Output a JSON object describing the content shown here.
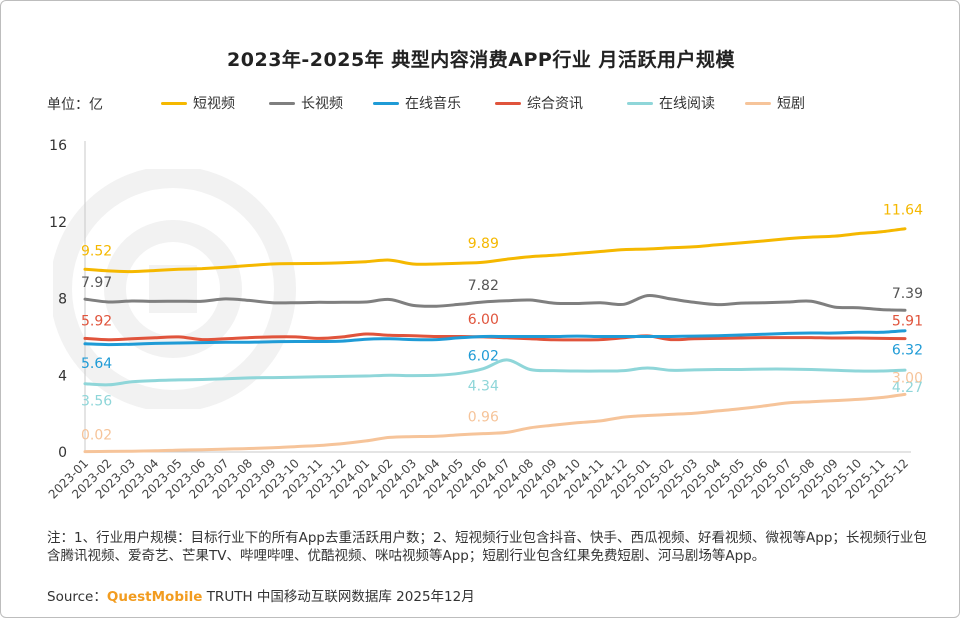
{
  "title": "2023年-2025年 典型内容消费APP行业 月活跃用户规模",
  "unit_label": "单位：亿",
  "note": "注：1、行业用户规模：目标行业下的所有App去重活跃用户数；2、短视频行业包含抖音、快手、西瓜视频、好看视频、微视等App；长视频行业包含腾讯视频、爱奇艺、芒果TV、哔哩哔哩、优酷视频、咪咕视频等App；短剧行业包含红果免费短剧、河马剧场等App。",
  "source": {
    "prefix": "Source：",
    "brand": "QuestMobile",
    "suffix": "TRUTH 中国移动互联网数据库 2025年12月"
  },
  "colors": {
    "短视频": "#f5b800",
    "长视频": "#7f7f7f",
    "在线音乐": "#1f9bd6",
    "综合资讯": "#e0543c",
    "在线阅读": "#8fd6d9",
    "短剧": "#f6c49a"
  },
  "chart_data": {
    "type": "line",
    "title": "2023年-2025年 典型内容消费APP行业 月活跃用户规模",
    "ylabel": "单位：亿",
    "xlabel": "",
    "ylim": [
      0,
      16
    ],
    "yticks": [
      "0",
      "4",
      "8",
      "12",
      "16"
    ],
    "grid": false,
    "legend_position": "top",
    "x": [
      "2023-01",
      "2023-02",
      "2023-03",
      "2023-04",
      "2023-05",
      "2023-06",
      "2023-07",
      "2023-08",
      "2023-09",
      "2023-10",
      "2023-11",
      "2023-12",
      "2024-01",
      "2024-02",
      "2024-03",
      "2024-04",
      "2024-05",
      "2024-06",
      "2024-07",
      "2024-08",
      "2024-09",
      "2024-10",
      "2024-11",
      "2024-12",
      "2025-01",
      "2025-02",
      "2025-03",
      "2025-04",
      "2025-05",
      "2025-06",
      "2025-07",
      "2025-08",
      "2025-09",
      "2025-10",
      "2025-11",
      "2025-12"
    ],
    "series": [
      {
        "name": "短视频",
        "values": [
          9.52,
          9.44,
          9.4,
          9.46,
          9.52,
          9.56,
          9.63,
          9.72,
          9.8,
          9.82,
          9.83,
          9.86,
          9.92,
          10.0,
          9.8,
          9.8,
          9.84,
          9.89,
          10.05,
          10.18,
          10.25,
          10.35,
          10.45,
          10.55,
          10.58,
          10.64,
          10.7,
          10.8,
          10.9,
          11.0,
          11.12,
          11.2,
          11.25,
          11.38,
          11.48,
          11.64
        ]
      },
      {
        "name": "长视频",
        "values": [
          7.97,
          7.82,
          7.87,
          7.85,
          7.86,
          7.86,
          7.98,
          7.9,
          7.78,
          7.78,
          7.8,
          7.8,
          7.82,
          7.95,
          7.64,
          7.6,
          7.7,
          7.82,
          7.88,
          7.92,
          7.76,
          7.74,
          7.78,
          7.7,
          8.15,
          7.98,
          7.8,
          7.68,
          7.76,
          7.78,
          7.82,
          7.86,
          7.55,
          7.52,
          7.42,
          7.39
        ]
      },
      {
        "name": "在线音乐",
        "values": [
          5.64,
          5.6,
          5.62,
          5.66,
          5.68,
          5.7,
          5.72,
          5.72,
          5.75,
          5.76,
          5.76,
          5.78,
          5.88,
          5.9,
          5.86,
          5.86,
          5.95,
          6.02,
          6.02,
          6.02,
          6.02,
          6.04,
          6.02,
          6.02,
          6.02,
          6.02,
          6.04,
          6.06,
          6.1,
          6.14,
          6.18,
          6.2,
          6.2,
          6.24,
          6.24,
          6.32
        ]
      },
      {
        "name": "综合资讯",
        "values": [
          5.92,
          5.85,
          5.9,
          5.95,
          6.0,
          5.86,
          5.9,
          5.96,
          6.0,
          6.0,
          5.92,
          6.0,
          6.15,
          6.08,
          6.06,
          6.02,
          6.02,
          6.0,
          5.95,
          5.9,
          5.85,
          5.84,
          5.86,
          5.95,
          6.05,
          5.86,
          5.9,
          5.92,
          5.94,
          5.96,
          5.96,
          5.96,
          5.94,
          5.94,
          5.92,
          5.91
        ]
      },
      {
        "name": "在线阅读",
        "values": [
          3.56,
          3.5,
          3.66,
          3.72,
          3.76,
          3.78,
          3.82,
          3.86,
          3.88,
          3.9,
          3.92,
          3.94,
          3.96,
          4.0,
          3.98,
          4.0,
          4.1,
          4.34,
          4.8,
          4.3,
          4.24,
          4.22,
          4.22,
          4.24,
          4.38,
          4.26,
          4.28,
          4.3,
          4.3,
          4.32,
          4.32,
          4.3,
          4.26,
          4.22,
          4.22,
          4.27
        ]
      },
      {
        "name": "短剧",
        "values": [
          0.02,
          0.03,
          0.04,
          0.06,
          0.1,
          0.12,
          0.15,
          0.18,
          0.22,
          0.28,
          0.34,
          0.44,
          0.58,
          0.76,
          0.8,
          0.82,
          0.9,
          0.96,
          1.02,
          1.26,
          1.4,
          1.52,
          1.62,
          1.82,
          1.9,
          1.96,
          2.02,
          2.14,
          2.26,
          2.4,
          2.56,
          2.62,
          2.68,
          2.74,
          2.84,
          3.0
        ]
      }
    ],
    "data_labels": [
      {
        "series": "短视频",
        "index": 0,
        "text": "9.52"
      },
      {
        "series": "短视频",
        "index": 17,
        "text": "9.89"
      },
      {
        "series": "短视频",
        "index": 35,
        "text": "11.64"
      },
      {
        "series": "长视频",
        "index": 0,
        "text": "7.97"
      },
      {
        "series": "长视频",
        "index": 17,
        "text": "7.82"
      },
      {
        "series": "长视频",
        "index": 35,
        "text": "7.39"
      },
      {
        "series": "在线音乐",
        "index": 0,
        "text": "5.64"
      },
      {
        "series": "在线音乐",
        "index": 17,
        "text": "6.02"
      },
      {
        "series": "在线音乐",
        "index": 35,
        "text": "6.32"
      },
      {
        "series": "综合资讯",
        "index": 0,
        "text": "5.92"
      },
      {
        "series": "综合资讯",
        "index": 17,
        "text": "6.00"
      },
      {
        "series": "综合资讯",
        "index": 35,
        "text": "5.91"
      },
      {
        "series": "在线阅读",
        "index": 0,
        "text": "3.56"
      },
      {
        "series": "在线阅读",
        "index": 17,
        "text": "4.34"
      },
      {
        "series": "在线阅读",
        "index": 35,
        "text": "4.27"
      },
      {
        "series": "短剧",
        "index": 0,
        "text": "0.02"
      },
      {
        "series": "短剧",
        "index": 17,
        "text": "0.96"
      },
      {
        "series": "短剧",
        "index": 35,
        "text": "3.00"
      }
    ]
  }
}
